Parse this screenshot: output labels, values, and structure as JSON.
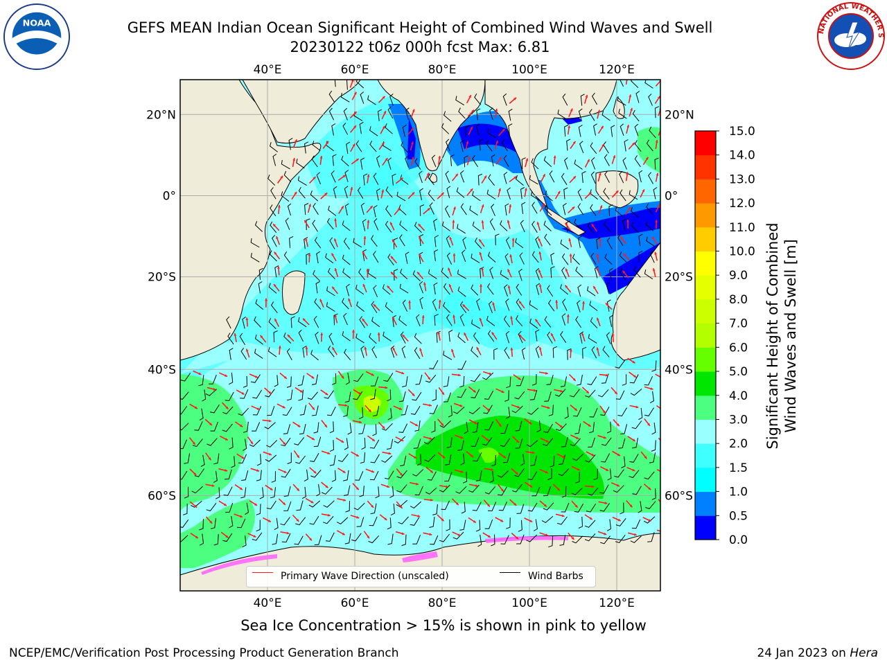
{
  "header": {
    "title_line1": "GEFS MEAN Indian Ocean Significant Height of Combined Wind Waves and Swell",
    "title_line2": "20230122 t06z 000h fcst   Max: 6.81"
  },
  "logos": {
    "left": {
      "icon": "noaa-logo",
      "text": "NOAA"
    },
    "right": {
      "icon": "nws-logo",
      "ring_text": "NATIONAL WEATHER SERVICE"
    }
  },
  "map": {
    "lon_labels": [
      "40°E",
      "60°E",
      "80°E",
      "100°E",
      "120°E"
    ],
    "lon_values": [
      40,
      60,
      80,
      100,
      120
    ],
    "lat_labels": [
      "20°N",
      "0°",
      "20°S",
      "40°S",
      "60°S"
    ],
    "lat_values": [
      20,
      0,
      -20,
      -40,
      -60
    ],
    "extent": {
      "lon_min": 20,
      "lon_max": 130,
      "lat_min": -70,
      "lat_max": 28
    },
    "colors": {
      "land": "#efedd9",
      "ocean_base": "#99ffff",
      "grid": "#aaaaaa",
      "wave_arrow": "#ff1a1a",
      "wind_barb": "#000000",
      "sea_ice": "#ff66ff"
    }
  },
  "legend": {
    "wave_label": "Primary Wave Direction (unscaled)",
    "wind_label": "Wind Barbs"
  },
  "colorbar": {
    "label_line1": "Significant Height of Combined",
    "label_line2": "Wind Waves and Swell [m]",
    "ticks": [
      "0.0",
      "0.5",
      "1.0",
      "1.5",
      "2.0",
      "3.0",
      "4.0",
      "5.0",
      "6.0",
      "7.0",
      "8.0",
      "9.0",
      "10.0",
      "11.0",
      "12.0",
      "13.0",
      "14.0",
      "15.0"
    ],
    "colors": [
      "#0000ff",
      "#0080ff",
      "#00ffff",
      "#40ffff",
      "#99ffff",
      "#4dff80",
      "#00e600",
      "#66ff00",
      "#b3ff00",
      "#ccff00",
      "#e6ff00",
      "#ffff00",
      "#ffcc00",
      "#ff9900",
      "#ff6600",
      "#ff3300",
      "#ff0000"
    ]
  },
  "caption": "Sea Ice Concentration > 15% is shown in pink to yellow",
  "footer": {
    "left": "NCEP/EMC/Verification Post Processing Product Generation Branch",
    "right_date": "24 Jan 2023 on",
    "right_host": "Hera"
  }
}
